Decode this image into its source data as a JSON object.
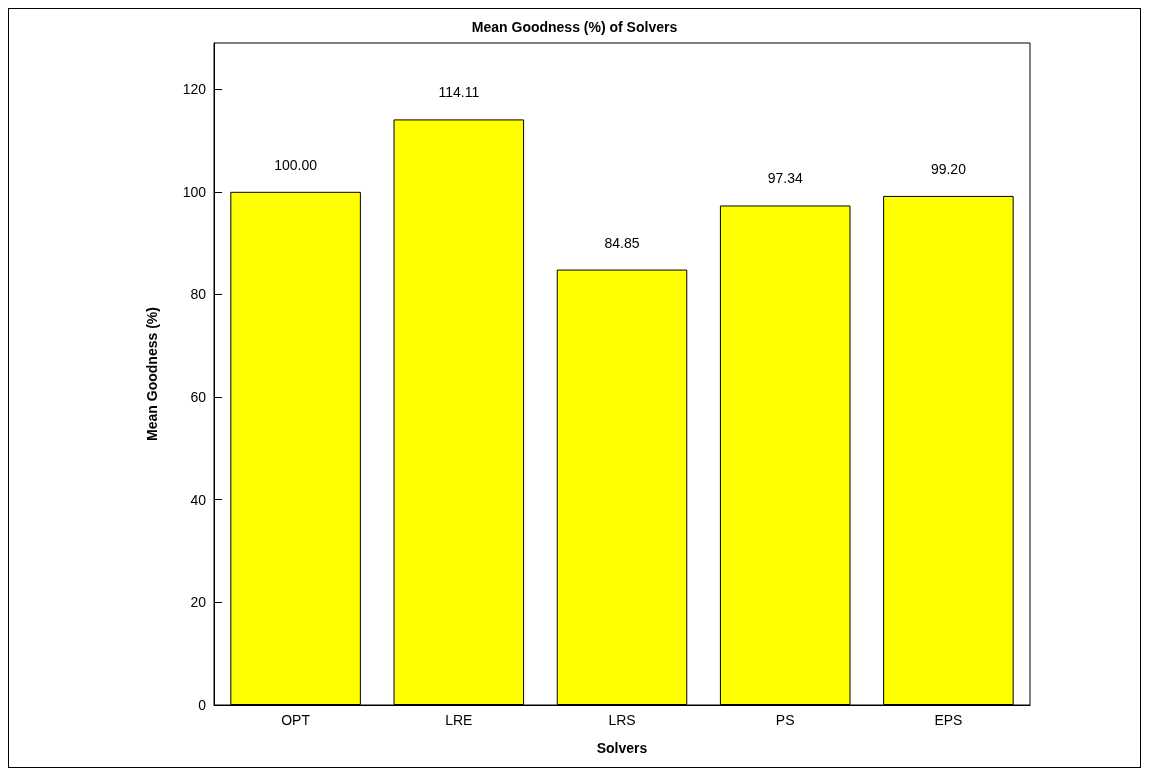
{
  "chart_data": {
    "type": "bar",
    "title": "Mean Goodness (%) of Solvers",
    "xlabel": "Solvers",
    "ylabel": "Mean Goodness (%)",
    "categories": [
      "OPT",
      "LRE",
      "LRS",
      "PS",
      "EPS"
    ],
    "values": [
      100.0,
      114.11,
      84.85,
      97.34,
      99.2
    ],
    "value_labels": [
      "100.00",
      "114.11",
      "84.85",
      "97.34",
      "99.20"
    ],
    "color": "#ffff00",
    "ylim": [
      0,
      129
    ],
    "yticks": [
      0,
      20,
      40,
      60,
      80,
      100,
      120
    ],
    "grid": false
  }
}
